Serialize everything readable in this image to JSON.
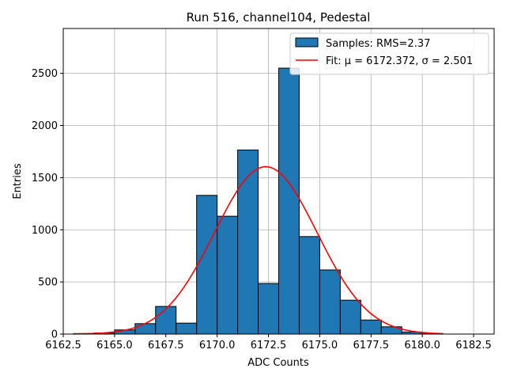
{
  "chart_data": {
    "type": "bar",
    "title": "Run 516, channel104, Pedestal",
    "xlabel": "ADC Counts",
    "ylabel": "Entries",
    "xlim": [
      6162.5,
      6183.5
    ],
    "ylim": [
      0,
      2930
    ],
    "xticks": [
      6162.5,
      6165.0,
      6167.5,
      6170.0,
      6172.5,
      6175.0,
      6177.5,
      6180.0,
      6182.5
    ],
    "xtick_labels": [
      "6162.5",
      "6165.0",
      "6167.5",
      "6170.0",
      "6172.5",
      "6175.0",
      "6177.5",
      "6180.0",
      "6182.5"
    ],
    "yticks": [
      0,
      500,
      1000,
      1500,
      2000,
      2500
    ],
    "ytick_labels": [
      "0",
      "500",
      "1000",
      "1500",
      "2000",
      "2500"
    ],
    "grid": true,
    "legend_position": "top-right",
    "bin_width": 1,
    "bins": [
      {
        "x0": 6163,
        "value": 5
      },
      {
        "x0": 6164,
        "value": 10
      },
      {
        "x0": 6165,
        "value": 40
      },
      {
        "x0": 6166,
        "value": 100
      },
      {
        "x0": 6167,
        "value": 265
      },
      {
        "x0": 6168,
        "value": 105
      },
      {
        "x0": 6169,
        "value": 1330
      },
      {
        "x0": 6170,
        "value": 1130
      },
      {
        "x0": 6171,
        "value": 1765
      },
      {
        "x0": 6172,
        "value": 485
      },
      {
        "x0": 6173,
        "value": 2550
      },
      {
        "x0": 6174,
        "value": 935
      },
      {
        "x0": 6175,
        "value": 615
      },
      {
        "x0": 6176,
        "value": 325
      },
      {
        "x0": 6177,
        "value": 135
      },
      {
        "x0": 6178,
        "value": 70
      },
      {
        "x0": 6179,
        "value": 20
      },
      {
        "x0": 6180,
        "value": 5
      }
    ],
    "bar_color": "#1f77b4",
    "fit": {
      "mu": 6172.372,
      "sigma": 2.501,
      "amplitude": 1605,
      "x_range": [
        6163,
        6181
      ],
      "color": "#ff0000"
    },
    "legend": [
      {
        "label": "Samples: RMS=2.37",
        "kind": "patch",
        "color": "#1f77b4"
      },
      {
        "label": "Fit: μ = 6172.372, σ = 2.501",
        "kind": "line",
        "color": "#ff0000"
      }
    ]
  }
}
